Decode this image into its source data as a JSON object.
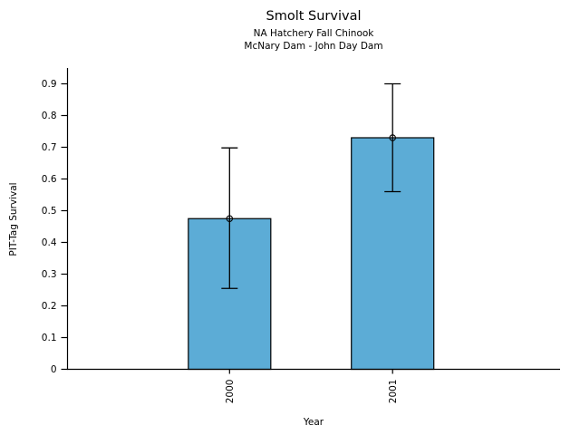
{
  "header": {
    "title": "Smolt Survival",
    "subtitle1": "NA Hatchery Fall Chinook",
    "subtitle2": "McNary Dam - John Day Dam"
  },
  "chart_data": {
    "type": "bar",
    "title": "Smolt Survival",
    "subtitle": [
      "NA Hatchery Fall Chinook",
      "McNary Dam - John Day Dam"
    ],
    "categories": [
      "2000",
      "2001"
    ],
    "values": [
      0.475,
      0.73
    ],
    "error_low": [
      0.255,
      0.56
    ],
    "error_high": [
      0.698,
      0.9
    ],
    "marker": "open-circle",
    "xlabel": "Year",
    "ylabel": "PIT-Tag Survival",
    "ylim": [
      0,
      0.95
    ],
    "yticks": [
      0,
      0.1,
      0.2,
      0.3,
      0.4,
      0.5,
      0.6,
      0.7,
      0.8,
      0.9
    ],
    "ytick_labels": [
      "0",
      "0.1",
      "0.2",
      "0.3",
      "0.4",
      "0.5",
      "0.6",
      "0.7",
      "0.8",
      "0.9"
    ],
    "xtick_label_rotation": 90,
    "grid": false,
    "legend": "none",
    "colors": {
      "bar_fill": "#5CACD6",
      "bar_edge": "#000000",
      "axis": "#000000",
      "error_bar": "#000000",
      "text": "#000000"
    }
  }
}
